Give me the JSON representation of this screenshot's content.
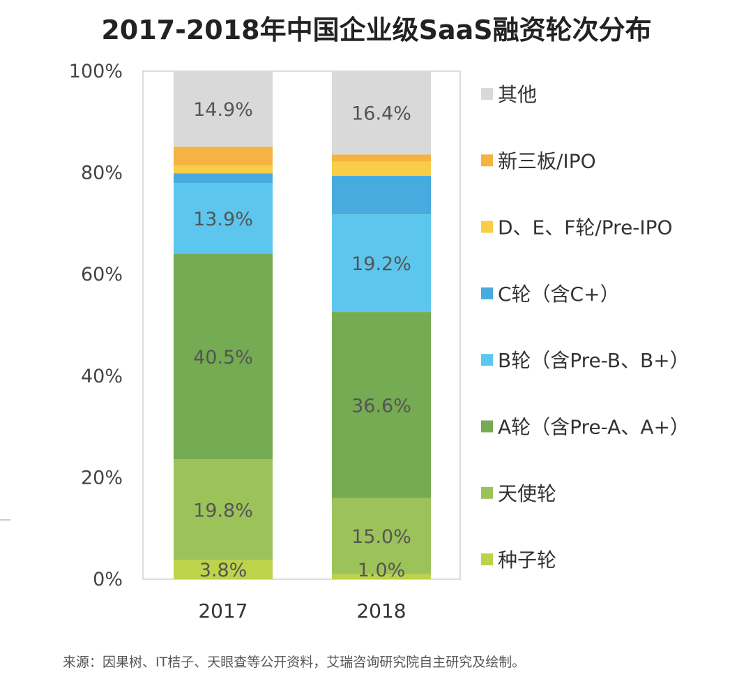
{
  "chart_data": {
    "type": "bar",
    "stacked": true,
    "title": "2017-2018年中国企业级SaaS融资轮次分布",
    "categories": [
      "2017",
      "2018"
    ],
    "ylim": [
      0,
      100
    ],
    "yticks": [
      "0%",
      "20%",
      "40%",
      "60%",
      "80%",
      "100%"
    ],
    "grid": false,
    "legend_position": "right",
    "series": [
      {
        "name": "种子轮",
        "color": "#bcd34a",
        "values": [
          3.8,
          1.0
        ],
        "labels": [
          "3.8%",
          "1.0%"
        ]
      },
      {
        "name": "天使轮",
        "color": "#9cc25a",
        "values": [
          19.8,
          15.0
        ],
        "labels": [
          "19.8%",
          "15.0%"
        ]
      },
      {
        "name": "A轮（含Pre-A、A+）",
        "color": "#75ab52",
        "values": [
          40.5,
          36.6
        ],
        "labels": [
          "40.5%",
          "36.6%"
        ]
      },
      {
        "name": "B轮（含Pre-B、B+）",
        "color": "#5cc6ee",
        "values": [
          13.9,
          19.2
        ],
        "labels": [
          "13.9%",
          "19.2%"
        ]
      },
      {
        "name": "C轮（含C+）",
        "color": "#48abe0",
        "values": [
          1.9,
          7.6
        ],
        "labels": [
          "",
          ""
        ]
      },
      {
        "name": "D、E、F轮/Pre-IPO",
        "color": "#f8cd47",
        "values": [
          1.5,
          2.8
        ],
        "labels": [
          "",
          ""
        ]
      },
      {
        "name": "新三板/IPO",
        "color": "#f5b342",
        "values": [
          3.7,
          1.4
        ],
        "labels": [
          "",
          ""
        ]
      },
      {
        "name": "其他",
        "color": "#d9d9d9",
        "values": [
          14.9,
          16.4
        ],
        "labels": [
          "14.9%",
          "16.4%"
        ]
      }
    ]
  },
  "footer": "来源：因果树、IT桔子、天眼查等公开资料，艾瑞咨询研究院自主研究及绘制。"
}
